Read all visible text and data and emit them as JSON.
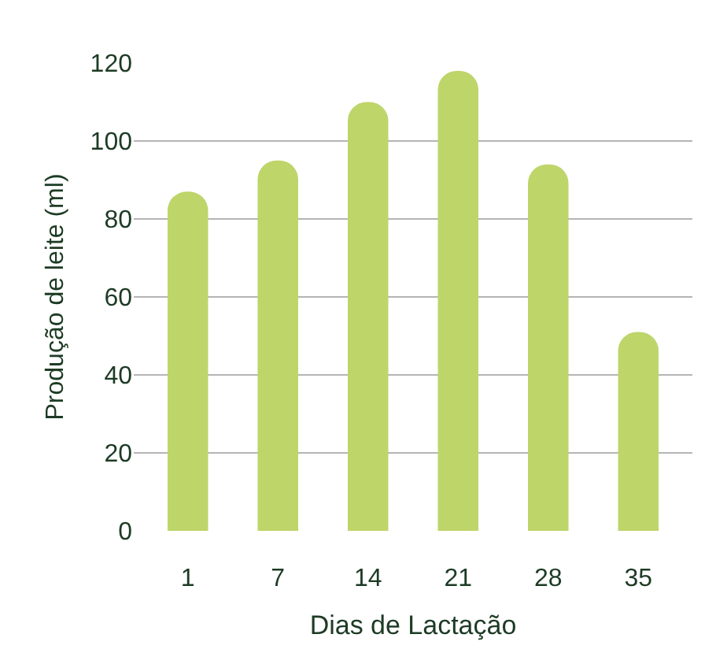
{
  "chart_data": {
    "type": "bar",
    "xlabel": "Dias de Lactação",
    "ylabel": "Produção de leite (ml)",
    "categories": [
      "1",
      "7",
      "14",
      "21",
      "28",
      "35"
    ],
    "values": [
      87,
      95,
      110,
      118,
      94,
      51
    ],
    "color": "#bed56a",
    "ylim": [
      0,
      120
    ],
    "yticks": [
      0,
      20,
      40,
      60,
      80,
      100,
      120
    ],
    "grid": "y"
  }
}
